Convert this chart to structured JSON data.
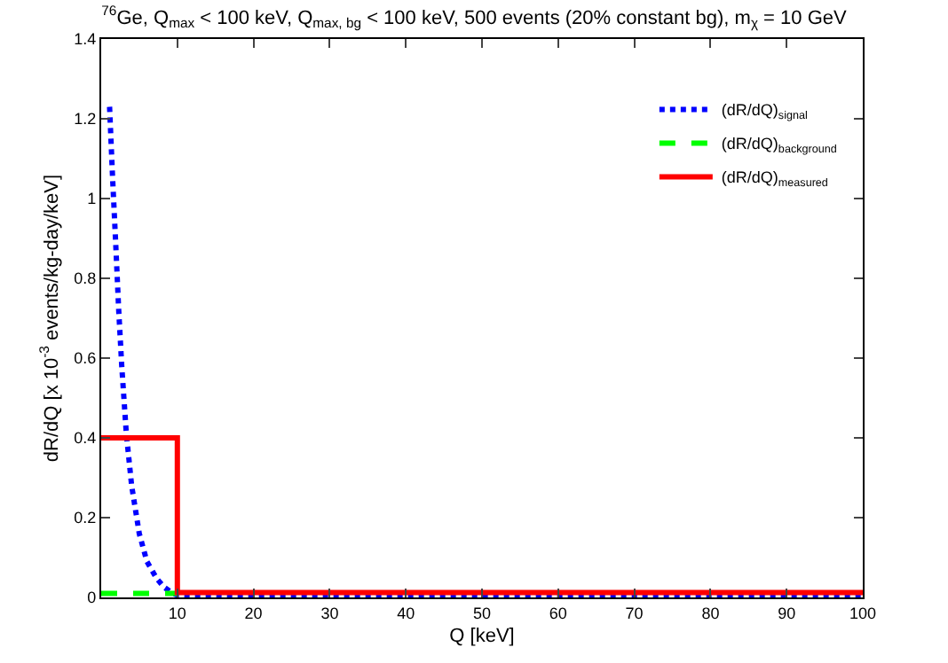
{
  "chart_data": {
    "type": "line",
    "title": "$^{76}$Ge, Q$_{max}$ < 100 keV, Q$_{max, bg}$ < 100 keV, 500 events (20% constant bg), m$_{χ}$ = 10 GeV",
    "xlabel": "Q [keV]",
    "ylabel": "dR/dQ [x 10$^{-3}$ events/kg-day/keV]",
    "series": [
      {
        "name": "(dR/dQ)$_{signal}$",
        "color": "#0000ff",
        "line_style": "dotted",
        "x": [
          1.1,
          1.5,
          1.9,
          2.3,
          2.7,
          3.3,
          4.0,
          5.0,
          6.0,
          7.3,
          8.3,
          9.4,
          10,
          20,
          40,
          60,
          80,
          100
        ],
        "values": [
          1.23,
          1.05,
          0.89,
          0.72,
          0.58,
          0.41,
          0.28,
          0.16,
          0.09,
          0.047,
          0.025,
          0.01,
          0.006,
          0.002,
          0.002,
          0.002,
          0.002,
          0.002
        ]
      },
      {
        "name": "(dR/dQ)$_{background}$",
        "color": "#00ff00",
        "line_style": "dashed",
        "x": [
          0,
          10
        ],
        "values": [
          0.01,
          0.01
        ]
      },
      {
        "name": "(dR/dQ)$_{measured}$",
        "color": "#ff0000",
        "line_style": "solid",
        "type": "step",
        "x": [
          0,
          10,
          100
        ],
        "values": [
          0.4,
          0.012,
          0.012
        ]
      }
    ],
    "xlim": [
      0,
      100
    ],
    "ylim": [
      0,
      1.4
    ],
    "xticks": [
      {
        "value": 0,
        "label": null
      },
      10,
      20,
      30,
      40,
      50,
      60,
      70,
      80,
      90,
      100
    ],
    "yticks": [
      0,
      0.2,
      0.4,
      0.6,
      0.8,
      1,
      1.2,
      1.4
    ],
    "legend": "top right",
    "marker": "none"
  }
}
